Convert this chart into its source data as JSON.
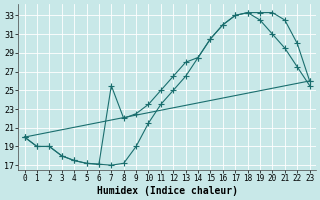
{
  "bg_color": "#c8e8e8",
  "grid_color": "#ffffff",
  "line_color": "#1a6e6e",
  "xlabel": "Humidex (Indice chaleur)",
  "xlim": [
    -0.5,
    23.5
  ],
  "ylim": [
    16.5,
    34.2
  ],
  "yticks": [
    17,
    19,
    21,
    23,
    25,
    27,
    29,
    31,
    33
  ],
  "xticks": [
    0,
    1,
    2,
    3,
    4,
    5,
    6,
    7,
    8,
    9,
    10,
    11,
    12,
    13,
    14,
    15,
    16,
    17,
    18,
    19,
    20,
    21,
    22,
    23
  ],
  "font_size_label": 7,
  "font_size_tick": 5.5,
  "curve1_x": [
    0,
    1,
    2,
    3,
    4,
    5,
    6,
    7,
    8,
    9,
    10,
    11,
    12,
    13,
    14,
    15,
    16,
    17,
    18,
    19,
    20,
    21,
    22,
    23
  ],
  "curve1_y": [
    20.0,
    19.0,
    19.0,
    18.0,
    17.5,
    17.2,
    17.1,
    17.0,
    17.2,
    19.0,
    21.5,
    23.5,
    25.0,
    26.5,
    28.5,
    30.5,
    32.0,
    33.0,
    33.3,
    33.3,
    33.3,
    32.5,
    30.0,
    26.0
  ],
  "curve2_x": [
    0,
    23
  ],
  "curve2_y": [
    20.0,
    26.0
  ],
  "curve3_x": [
    0,
    1,
    2,
    3,
    4,
    5,
    6,
    7,
    8,
    9,
    10,
    11,
    12,
    13,
    14,
    15,
    16,
    17,
    18,
    19,
    20,
    21,
    22,
    23
  ],
  "curve3_y": [
    20.0,
    19.0,
    19.0,
    18.0,
    17.5,
    17.2,
    17.1,
    25.5,
    22.0,
    22.5,
    23.5,
    25.0,
    26.5,
    28.0,
    28.5,
    30.5,
    32.0,
    33.0,
    33.3,
    32.5,
    31.0,
    29.5,
    27.5,
    25.5
  ]
}
